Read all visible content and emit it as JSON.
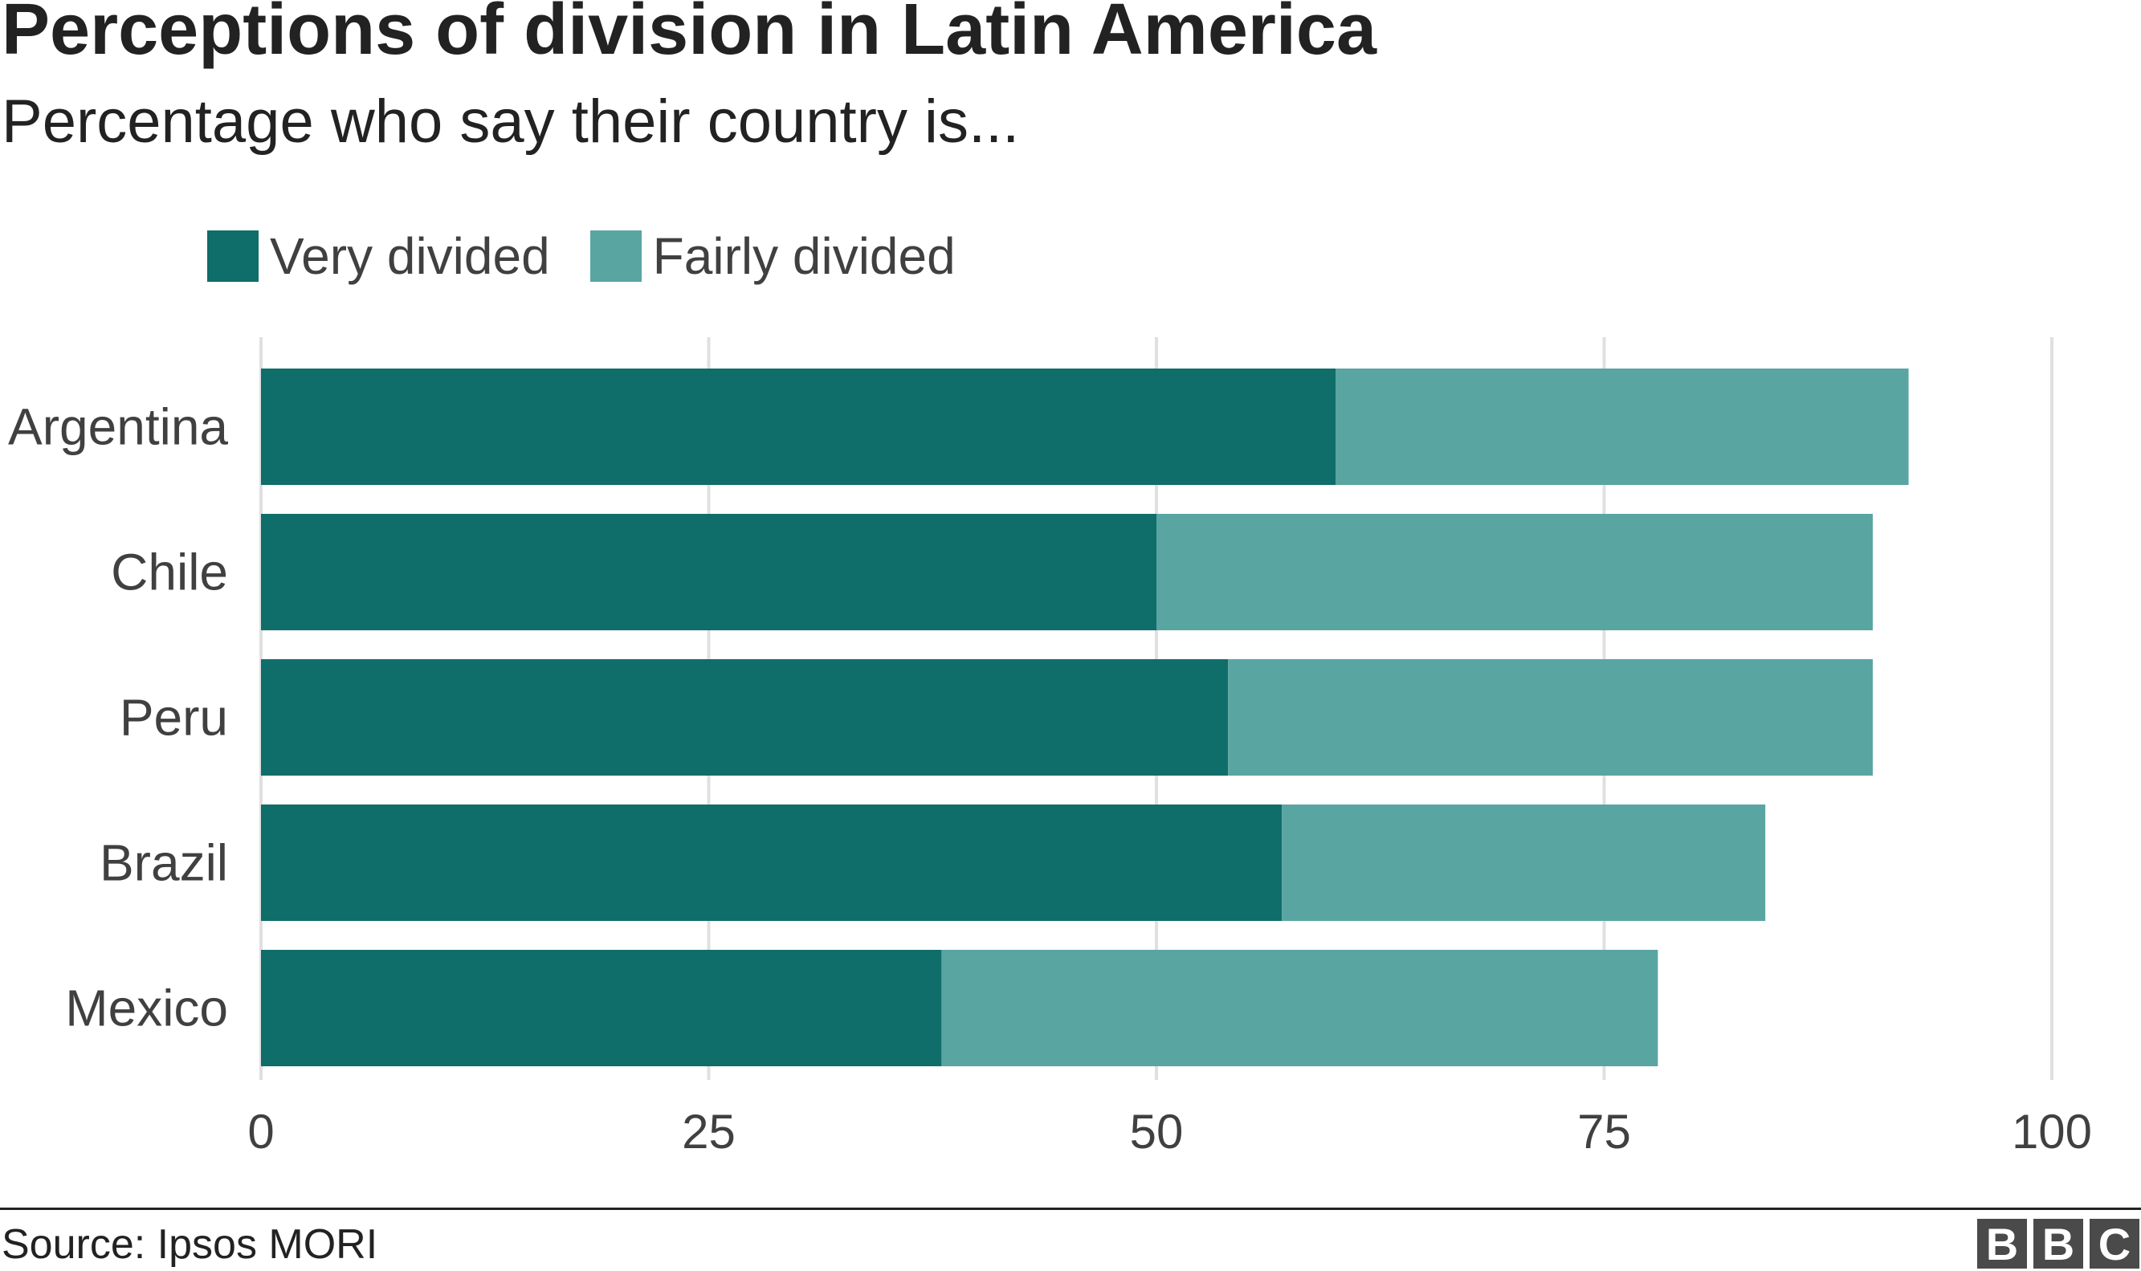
{
  "chart_data": {
    "type": "bar",
    "orientation": "horizontal",
    "stacked": true,
    "title": "Perceptions of division in Latin America",
    "subtitle": "Percentage who say their country is...",
    "categories": [
      "Argentina",
      "Chile",
      "Peru",
      "Brazil",
      "Mexico"
    ],
    "series": [
      {
        "name": "Very divided",
        "color": "#0f6d6a",
        "values": [
          60,
          50,
          54,
          57,
          38
        ]
      },
      {
        "name": "Fairly divided",
        "color": "#59a5a2",
        "values": [
          32,
          40,
          36,
          27,
          40
        ]
      }
    ],
    "xlim": [
      0,
      100
    ],
    "xticks": [
      "0",
      "25",
      "50",
      "75",
      "100"
    ],
    "grid": true,
    "legend": "top-left",
    "source": "Source: Ipsos MORI"
  },
  "logo": [
    "B",
    "B",
    "C"
  ]
}
